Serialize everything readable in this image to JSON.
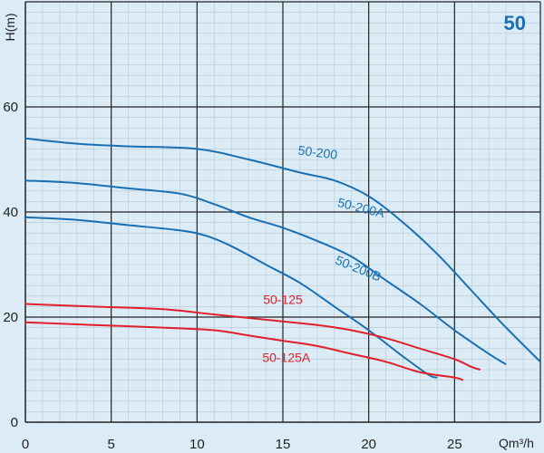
{
  "chart_data": {
    "type": "line",
    "badge": "50",
    "xlabel": "Qm³/h",
    "ylabel": "H(m)",
    "xlim": [
      0,
      30
    ],
    "ylim": [
      0,
      80
    ],
    "x_ticks": [
      0,
      5,
      10,
      15,
      20,
      25
    ],
    "y_ticks": [
      0,
      20,
      40,
      60
    ],
    "grid": true,
    "colors": {
      "blue": "#1a6fb3",
      "red": "#e0202a",
      "badge": "#1a6fb3"
    },
    "series": [
      {
        "name": "50-200",
        "color": "blue",
        "label_at": [
          17,
          50.5
        ],
        "label_rotate": 7,
        "points": [
          [
            0,
            54
          ],
          [
            3,
            53
          ],
          [
            6,
            52.5
          ],
          [
            10,
            52
          ],
          [
            13,
            50
          ],
          [
            16,
            47.5
          ],
          [
            18,
            46
          ],
          [
            20,
            43
          ],
          [
            22,
            38
          ],
          [
            24,
            32
          ],
          [
            26,
            25
          ],
          [
            28,
            18
          ],
          [
            30,
            11.5
          ]
        ]
      },
      {
        "name": "50-200A",
        "color": "blue",
        "label_at": [
          19.5,
          40
        ],
        "label_rotate": 14,
        "points": [
          [
            0,
            46
          ],
          [
            3,
            45.5
          ],
          [
            6,
            44.5
          ],
          [
            9,
            43.5
          ],
          [
            11,
            41.5
          ],
          [
            13,
            39
          ],
          [
            15,
            37
          ],
          [
            17,
            34.5
          ],
          [
            19,
            31.5
          ],
          [
            21,
            27
          ],
          [
            23,
            22.5
          ],
          [
            25,
            17.5
          ],
          [
            27,
            13
          ],
          [
            28,
            11
          ]
        ]
      },
      {
        "name": "50-200B",
        "color": "blue",
        "label_at": [
          19.3,
          28.5
        ],
        "label_rotate": 22,
        "points": [
          [
            0,
            39
          ],
          [
            3,
            38.5
          ],
          [
            6,
            37.5
          ],
          [
            9,
            36.5
          ],
          [
            10.5,
            35.5
          ],
          [
            12,
            33.5
          ],
          [
            14,
            30
          ],
          [
            16,
            26.5
          ],
          [
            18,
            22
          ],
          [
            20,
            17.5
          ],
          [
            22,
            12.5
          ],
          [
            23.5,
            9
          ],
          [
            24,
            8.5
          ]
        ]
      },
      {
        "name": "50-125",
        "color": "red",
        "label_at": [
          15,
          22.5
        ],
        "label_rotate": 0,
        "points": [
          [
            0,
            22.5
          ],
          [
            4,
            22
          ],
          [
            8,
            21.5
          ],
          [
            11,
            20.5
          ],
          [
            14,
            19.5
          ],
          [
            17,
            18.5
          ],
          [
            19,
            17.5
          ],
          [
            21,
            16
          ],
          [
            23,
            14
          ],
          [
            25,
            12
          ],
          [
            26,
            10.5
          ],
          [
            26.5,
            10
          ]
        ]
      },
      {
        "name": "50-125A",
        "color": "red",
        "label_at": [
          15.2,
          11.5
        ],
        "label_rotate": 0,
        "points": [
          [
            0,
            19
          ],
          [
            4,
            18.5
          ],
          [
            8,
            18
          ],
          [
            11,
            17.5
          ],
          [
            13,
            16.5
          ],
          [
            15,
            15.5
          ],
          [
            17,
            14.5
          ],
          [
            19,
            13
          ],
          [
            21,
            11.5
          ],
          [
            23,
            9.5
          ],
          [
            25,
            8.5
          ],
          [
            25.5,
            8
          ]
        ]
      }
    ]
  }
}
